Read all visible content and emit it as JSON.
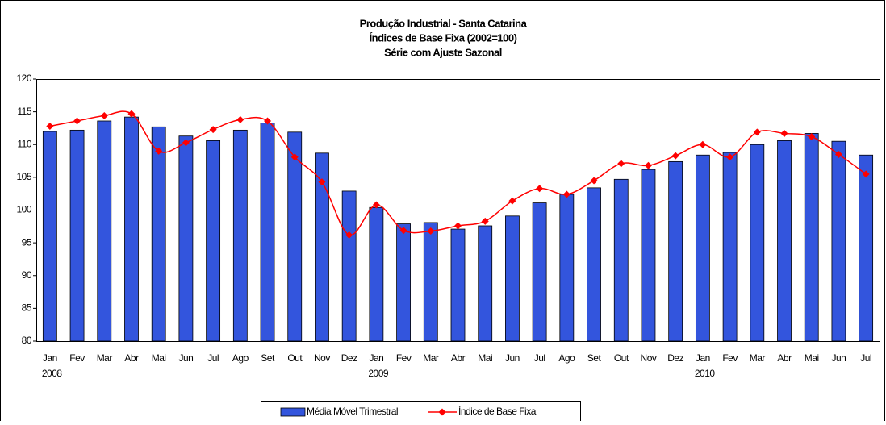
{
  "chart_data": {
    "type": "bar_line",
    "title": "Produção Industrial - Santa Catarina",
    "subtitle": [
      "Índices de Base Fixa (2002=100)",
      "Série com Ajuste Sazonal"
    ],
    "categories": [
      "Jan",
      "Fev",
      "Mar",
      "Abr",
      "Mai",
      "Jun",
      "Jul",
      "Ago",
      "Set",
      "Out",
      "Nov",
      "Dez",
      "Jan",
      "Fev",
      "Mar",
      "Abr",
      "Mai",
      "Jun",
      "Jul",
      "Ago",
      "Set",
      "Out",
      "Nov",
      "Dez",
      "Jan",
      "Fev",
      "Mar",
      "Abr",
      "Mai",
      "Jun",
      "Jul"
    ],
    "year_labels": [
      "2008",
      "2009",
      "2010"
    ],
    "series": [
      {
        "name": "Média Móvel Trimestral",
        "type": "bar",
        "color": "#3355dd",
        "values": [
          112,
          112.2,
          113.6,
          114.2,
          112.7,
          111.3,
          110.6,
          112.2,
          113.3,
          111.9,
          108.7,
          102.9,
          100.4,
          97.9,
          98.1,
          97.1,
          97.6,
          99.1,
          101.1,
          102.4,
          103.4,
          104.7,
          106.2,
          107.4,
          108.4,
          108.8,
          110.0,
          110.6,
          111.7,
          110.5,
          108.4
        ]
      },
      {
        "name": "Índice de Base Fixa",
        "type": "line",
        "color": "#ff0000",
        "values": [
          112.8,
          113.6,
          114.4,
          114.7,
          109.0,
          110.3,
          112.3,
          113.8,
          113.6,
          108.1,
          104.3,
          96.2,
          100.8,
          96.9,
          96.8,
          97.6,
          98.3,
          101.4,
          103.3,
          102.4,
          104.5,
          107.1,
          106.8,
          108.3,
          110.0,
          108.1,
          111.9,
          111.7,
          111.2,
          108.5,
          105.5
        ]
      }
    ],
    "ylim": [
      80,
      120
    ],
    "yticks": [
      80,
      85,
      90,
      95,
      100,
      105,
      110,
      115,
      120
    ],
    "grid": false
  }
}
